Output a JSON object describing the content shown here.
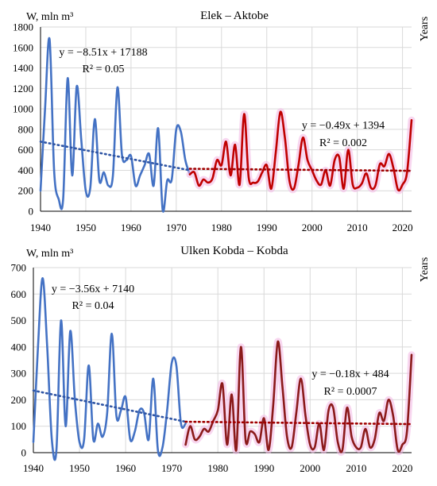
{
  "chart_data": [
    {
      "type": "line",
      "title": "Elek – Aktobe",
      "ylabel": "W, mln m³",
      "xlabel": "Years",
      "xlim": [
        1940,
        2022
      ],
      "ylim": [
        0,
        1800
      ],
      "xticks": [
        1940,
        1950,
        1960,
        1970,
        1980,
        1990,
        2000,
        2010,
        2020
      ],
      "yticks": [
        0,
        200,
        400,
        600,
        800,
        1000,
        1200,
        1400,
        1600,
        1800
      ],
      "grid": true,
      "series": [
        {
          "color": "#4472c4",
          "x": [
            1940,
            1941,
            1942,
            1943,
            1944,
            1945,
            1946,
            1947,
            1948,
            1949,
            1950,
            1951,
            1952,
            1953,
            1954,
            1955,
            1956,
            1957,
            1958,
            1959,
            1960,
            1961,
            1962,
            1963,
            1964,
            1965,
            1966,
            1967,
            1968,
            1969,
            1970,
            1971,
            1972,
            1973
          ],
          "y": [
            200,
            1000,
            1680,
            400,
            120,
            120,
            1300,
            350,
            1220,
            700,
            200,
            230,
            900,
            300,
            380,
            250,
            350,
            1210,
            550,
            500,
            540,
            250,
            350,
            450,
            560,
            250,
            810,
            10,
            300,
            310,
            800,
            780,
            500,
            360
          ]
        },
        {
          "color": "#c00000",
          "x": [
            1973,
            1974,
            1975,
            1976,
            1977,
            1978,
            1979,
            1980,
            1981,
            1982,
            1983,
            1984,
            1985,
            1986,
            1987,
            1988,
            1989,
            1990,
            1991,
            1992,
            1993,
            1994,
            1995,
            1996,
            1997,
            1998,
            1999,
            2000,
            2001,
            2002,
            2003,
            2004,
            2005,
            2006,
            2007,
            2008,
            2009,
            2010,
            2011,
            2012,
            2013,
            2014,
            2015,
            2016,
            2017,
            2018,
            2019,
            2020,
            2021,
            2022
          ],
          "y": [
            360,
            380,
            250,
            310,
            280,
            320,
            500,
            450,
            680,
            350,
            650,
            260,
            950,
            330,
            280,
            290,
            380,
            450,
            220,
            580,
            970,
            720,
            300,
            220,
            450,
            720,
            500,
            400,
            300,
            260,
            400,
            250,
            500,
            530,
            220,
            600,
            260,
            230,
            270,
            370,
            230,
            250,
            460,
            440,
            560,
            420,
            210,
            260,
            380,
            890
          ]
        }
      ],
      "trendlines": [
        {
          "equation": "y = −8.51x + 17188",
          "r2": "R² = 0.05",
          "slope": -8.51,
          "x_start": 1940,
          "x_end": 1973,
          "y_start": 680,
          "y_end": 400,
          "color": "#2f55a4"
        },
        {
          "equation": "y = −0.49x + 1394",
          "r2": "R² = 0.002",
          "slope": -0.49,
          "x_start": 1973,
          "x_end": 2022,
          "y_start": 415,
          "y_end": 395,
          "color": "#a00000"
        }
      ]
    },
    {
      "type": "line",
      "title": "Ulken Kobda  – Kobda",
      "ylabel": "W, mln m³",
      "xlabel": "Years",
      "xlim": [
        1940,
        2022
      ],
      "ylim": [
        0,
        700
      ],
      "xticks": [
        1940,
        1950,
        1960,
        1970,
        1980,
        1990,
        2000,
        2010,
        2020
      ],
      "yticks": [
        0,
        100,
        200,
        300,
        400,
        500,
        600,
        700
      ],
      "grid": true,
      "series": [
        {
          "color": "#4472c4",
          "x": [
            1940,
            1941,
            1942,
            1943,
            1944,
            1945,
            1946,
            1947,
            1948,
            1949,
            1950,
            1951,
            1952,
            1953,
            1954,
            1955,
            1956,
            1957,
            1958,
            1959,
            1960,
            1961,
            1962,
            1963,
            1964,
            1965,
            1966,
            1967,
            1968,
            1969,
            1970,
            1971,
            1972,
            1973
          ],
          "y": [
            40,
            400,
            660,
            400,
            50,
            10,
            500,
            100,
            460,
            200,
            40,
            50,
            330,
            50,
            110,
            60,
            150,
            450,
            140,
            160,
            210,
            50,
            80,
            160,
            150,
            50,
            280,
            10,
            20,
            160,
            340,
            330,
            110,
            110
          ]
        },
        {
          "color": "#8b1a1a",
          "x": [
            1973,
            1974,
            1975,
            1976,
            1977,
            1978,
            1979,
            1980,
            1981,
            1982,
            1983,
            1984,
            1985,
            1986,
            1987,
            1988,
            1989,
            1990,
            1991,
            1992,
            1993,
            1994,
            1995,
            1996,
            1997,
            1998,
            1999,
            2000,
            2001,
            2002,
            2003,
            2004,
            2005,
            2006,
            2007,
            2008,
            2009,
            2010,
            2011,
            2012,
            2013,
            2014,
            2015,
            2016,
            2017,
            2018,
            2019,
            2020,
            2021,
            2022
          ],
          "y": [
            30,
            100,
            50,
            60,
            90,
            80,
            120,
            160,
            260,
            30,
            220,
            10,
            400,
            50,
            80,
            70,
            40,
            130,
            10,
            180,
            420,
            250,
            60,
            20,
            150,
            280,
            140,
            30,
            20,
            110,
            10,
            160,
            170,
            40,
            10,
            170,
            60,
            20,
            20,
            90,
            20,
            50,
            150,
            120,
            200,
            140,
            10,
            30,
            80,
            370
          ]
        }
      ],
      "trendlines": [
        {
          "equation": "y = −3.56x + 7140",
          "r2": "R² = 0.04",
          "slope": -3.56,
          "x_start": 1940,
          "x_end": 1973,
          "y_start": 235,
          "y_end": 117,
          "color": "#2f55a4"
        },
        {
          "equation": "y = −0.18x + 484",
          "r2": "R² = 0.0007",
          "slope": -0.18,
          "x_start": 1973,
          "x_end": 2022,
          "y_start": 117,
          "y_end": 108,
          "color": "#a00000"
        }
      ]
    }
  ]
}
